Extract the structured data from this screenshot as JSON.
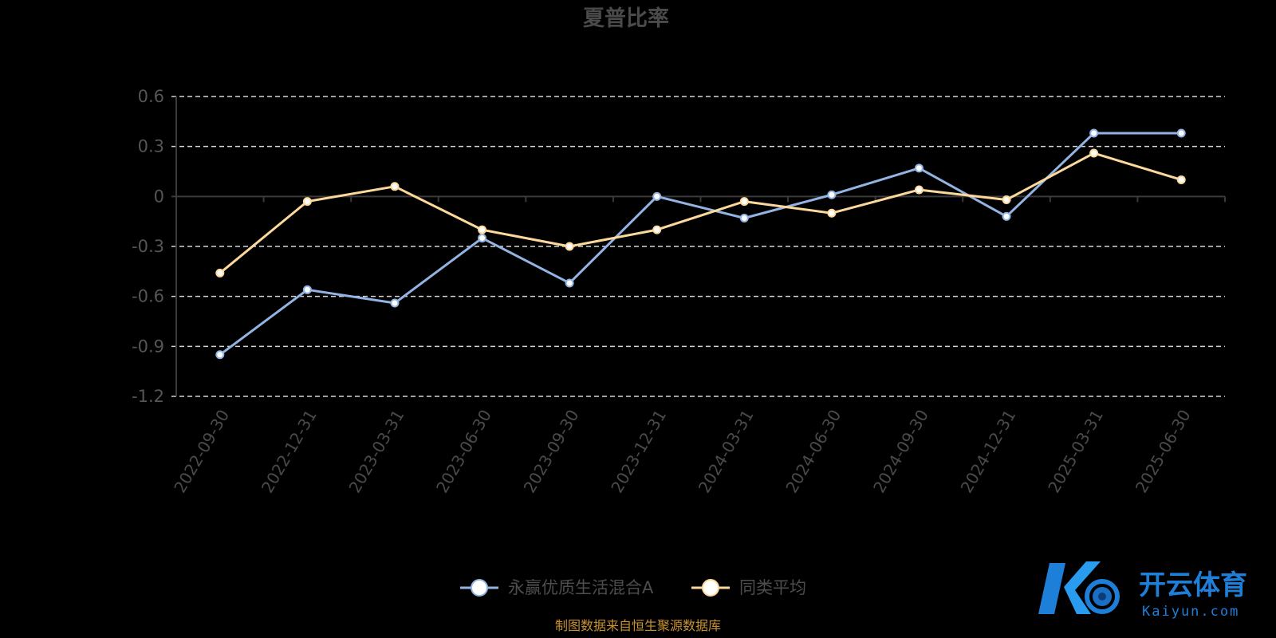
{
  "chart_data": {
    "type": "line",
    "title": "夏普比率",
    "categories": [
      "2022-09-30",
      "2022-12-31",
      "2023-03-31",
      "2023-06-30",
      "2023-09-30",
      "2023-12-31",
      "2024-03-31",
      "2024-06-30",
      "2024-09-30",
      "2024-12-31",
      "2025-03-31",
      "2025-06-30"
    ],
    "series": [
      {
        "name": "永赢优质生活混合A",
        "color": "#93b3e3",
        "values": [
          -0.95,
          -0.56,
          -0.64,
          -0.25,
          -0.52,
          0.0,
          -0.13,
          0.01,
          0.17,
          -0.12,
          0.38,
          0.38
        ]
      },
      {
        "name": "同类平均",
        "color": "#fdd89b",
        "values": [
          -0.46,
          -0.03,
          0.06,
          -0.2,
          -0.3,
          -0.2,
          -0.03,
          -0.1,
          0.04,
          -0.02,
          0.26,
          0.1
        ]
      }
    ],
    "ylim": [
      -1.2,
      0.6
    ],
    "y_ticks": [
      "0.6",
      "0.3",
      "0",
      "-0.3",
      "-0.6",
      "-0.9",
      "-1.2"
    ],
    "y_tick_values": [
      0.6,
      0.3,
      0,
      -0.3,
      -0.6,
      -0.9,
      -1.2
    ],
    "grid": true,
    "legend_position": "bottom-center",
    "xlabel": "",
    "ylabel": ""
  },
  "source_note": "制图数据来自恒生聚源数据库",
  "watermark": {
    "cn": "开云体育",
    "en": "Kaiyun.com",
    "brand_color": "#1e7fd8"
  }
}
